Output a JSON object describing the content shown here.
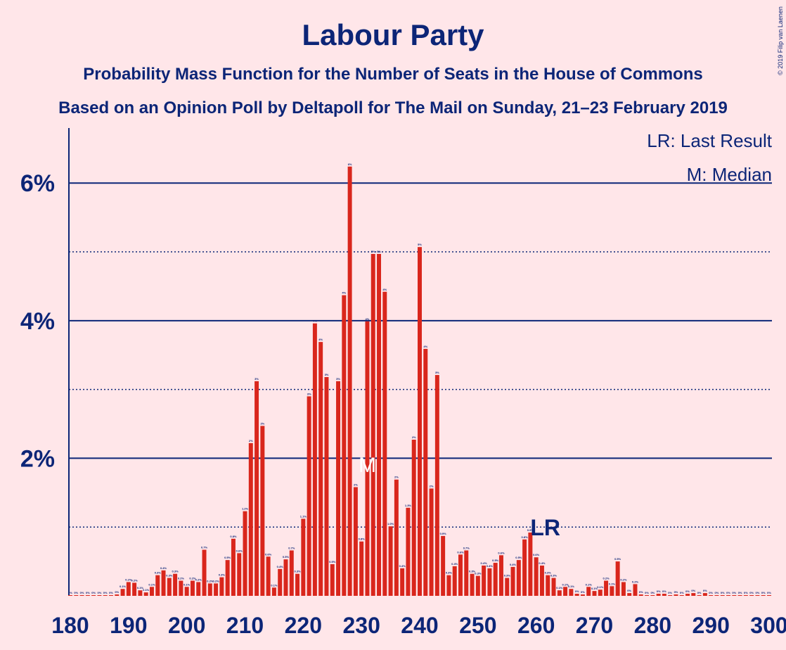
{
  "chart_data": {
    "type": "bar",
    "title": "Labour Party",
    "subtitle": "Probability Mass Function for the Number of Seats in the House of Commons",
    "subtitle2": "Based on an Opinion Poll by Deltapoll for The Mail on Sunday, 21–23 February 2019",
    "copyright": "© 2019 Filip van Laenen",
    "legend": [
      "LR: Last Result",
      "M: Median"
    ],
    "median": {
      "label": "M",
      "seat": 231
    },
    "last_result": {
      "label": "LR",
      "seat": 259
    },
    "color": "#d9261c",
    "x": [
      180,
      181,
      182,
      183,
      184,
      185,
      186,
      187,
      188,
      189,
      190,
      191,
      192,
      193,
      194,
      195,
      196,
      197,
      198,
      199,
      200,
      201,
      202,
      203,
      204,
      205,
      206,
      207,
      208,
      209,
      210,
      211,
      212,
      213,
      214,
      215,
      216,
      217,
      218,
      219,
      220,
      221,
      222,
      223,
      224,
      225,
      226,
      227,
      228,
      229,
      230,
      231,
      232,
      233,
      234,
      235,
      236,
      237,
      238,
      239,
      240,
      241,
      242,
      243,
      244,
      245,
      246,
      247,
      248,
      249,
      250,
      251,
      252,
      253,
      254,
      255,
      256,
      257,
      258,
      259,
      260,
      261,
      262,
      263,
      264,
      265,
      266,
      267,
      268,
      269,
      270,
      271,
      272,
      273,
      274,
      275,
      276,
      277,
      278,
      279,
      280,
      281,
      282,
      283,
      284,
      285,
      286,
      287,
      288,
      289,
      290,
      291,
      292,
      293,
      294,
      295,
      296,
      297,
      298,
      299,
      300
    ],
    "values": [
      0.01,
      0.01,
      0.01,
      0.01,
      0.01,
      0.01,
      0.01,
      0.01,
      0.02,
      0.1,
      0.2,
      0.19,
      0.08,
      0.05,
      0.13,
      0.3,
      0.37,
      0.26,
      0.32,
      0.22,
      0.13,
      0.22,
      0.2,
      0.67,
      0.18,
      0.18,
      0.27,
      0.52,
      0.83,
      0.62,
      1.23,
      2.22,
      3.12,
      2.47,
      0.57,
      0.12,
      0.39,
      0.53,
      0.66,
      0.32,
      1.12,
      2.9,
      3.96,
      3.69,
      3.18,
      0.46,
      3.12,
      4.37,
      6.24,
      1.58,
      0.79,
      3.99,
      4.97,
      4.97,
      4.42,
      1.01,
      1.69,
      0.4,
      1.28,
      2.27,
      5.07,
      3.59,
      1.56,
      3.21,
      0.87,
      0.3,
      0.43,
      0.6,
      0.66,
      0.32,
      0.29,
      0.44,
      0.4,
      0.48,
      0.59,
      0.26,
      0.42,
      0.52,
      0.82,
      0.92,
      0.56,
      0.44,
      0.3,
      0.26,
      0.08,
      0.13,
      0.1,
      0.03,
      0.02,
      0.13,
      0.07,
      0.09,
      0.22,
      0.14,
      0.5,
      0.2,
      0.04,
      0.17,
      0.02,
      0.01,
      0.01,
      0.03,
      0.03,
      0.01,
      0.02,
      0.01,
      0.03,
      0.04,
      0.01,
      0.04,
      0.01,
      0.01,
      0.01,
      0.01,
      0.01,
      0.01,
      0.01,
      0.01,
      0.01,
      0.01,
      0.01
    ],
    "value_labels": [
      "0%",
      "0%",
      "0%",
      "0%",
      "0%",
      "0%",
      "0%",
      "0%",
      "0%",
      "0.1%",
      "0.2%",
      "0.2%",
      "0.1%",
      "0.1%",
      "0.1%",
      "0.3%",
      "0.4%",
      "0.3%",
      "0.3%",
      "0.2%",
      "0.1%",
      "0.2%",
      "0.2%",
      "0.7%",
      "0.2%",
      "0.2%",
      "0.3%",
      "0.5%",
      "0.8%",
      "0.6%",
      "1.2%",
      "2%",
      "3%",
      "2%",
      "0.6%",
      "0.1%",
      "0.4%",
      "0.5%",
      "0.7%",
      "0.3%",
      "1.1%",
      "3%",
      "4%",
      "4%",
      "3%",
      "0.5%",
      "3%",
      "4%",
      "6%",
      "2%",
      "0.8%",
      "4%",
      "5%",
      "5%",
      "4%",
      "1.0%",
      "2%",
      "0.4%",
      "1.3%",
      "2%",
      "5%",
      "4%",
      "2%",
      "3%",
      "0.9%",
      "0.3%",
      "0.4%",
      "0.6%",
      "0.7%",
      "0.3%",
      "0.3%",
      "0.4%",
      "0.4%",
      "0.5%",
      "0.6%",
      "0.3%",
      "0.4%",
      "0.5%",
      "0.8%",
      "0.9%",
      "0.6%",
      "0.4%",
      "0.3%",
      "0.3%",
      "0.1%",
      "0.1%",
      "0.1%",
      "0%",
      "0%",
      "0.1%",
      "0.1%",
      "0.1%",
      "0.2%",
      "0.1%",
      "0.5%",
      "0.2%",
      "0%",
      "0.2%",
      "0%",
      "0%",
      "0%",
      "0%",
      "0%",
      "0%",
      "0%",
      "0%",
      "0%",
      "0%",
      "0%",
      "0%",
      "0%",
      "0%",
      "0%",
      "0%",
      "0%",
      "0%",
      "0%",
      "0%",
      "0%",
      "0%",
      "0%"
    ],
    "xlim": [
      180,
      300
    ],
    "xticks": [
      180,
      190,
      200,
      210,
      220,
      230,
      240,
      250,
      260,
      270,
      280,
      290,
      300
    ],
    "ylim": [
      0,
      6.8
    ],
    "yticks": [
      {
        "value": 2,
        "label": "2%"
      },
      {
        "value": 4,
        "label": "4%"
      },
      {
        "value": 6,
        "label": "6%"
      }
    ],
    "minor_grid": [
      1,
      3,
      5
    ]
  }
}
